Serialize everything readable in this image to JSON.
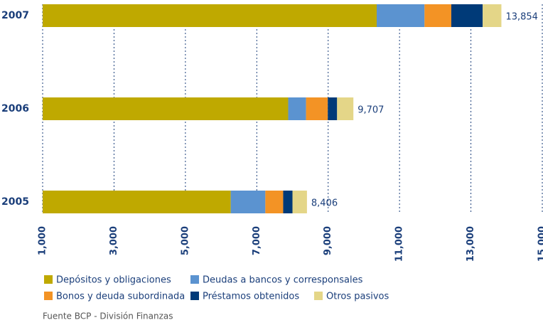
{
  "chart_data": {
    "type": "stacked-barh",
    "categories": [
      "2007",
      "2006",
      "2005"
    ],
    "series": [
      {
        "name": "Depósitos y obligaciones",
        "color": "#bfa900",
        "values": [
          10360,
          7880,
          6270
        ]
      },
      {
        "name": "Deudas a bancos y corresponsales",
        "color": "#5b93d0",
        "values": [
          1340,
          500,
          970
        ]
      },
      {
        "name": "Bonos y deuda subordinada",
        "color": "#f39325",
        "values": [
          750,
          610,
          500
        ]
      },
      {
        "name": "Préstamos obtenidos",
        "color": "#003a78",
        "values": [
          880,
          260,
          260
        ]
      },
      {
        "name": "Otros pasivos",
        "color": "#e4d688",
        "values": [
          524,
          457,
          406
        ]
      }
    ],
    "totals": [
      {
        "value": 13854,
        "label": "13,854"
      },
      {
        "value": 9707,
        "label": "9,707"
      },
      {
        "value": 8406,
        "label": "8,406"
      }
    ],
    "xlim": [
      1000,
      15000
    ],
    "xticks": [
      {
        "value": 1000,
        "label": "1,000"
      },
      {
        "value": 3000,
        "label": "3,000"
      },
      {
        "value": 5000,
        "label": "5,000"
      },
      {
        "value": 7000,
        "label": "7,000"
      },
      {
        "value": 9000,
        "label": "9,000"
      },
      {
        "value": 11000,
        "label": "11,000"
      },
      {
        "value": 13000,
        "label": "13,000"
      },
      {
        "value": 15000,
        "label": "15,000"
      }
    ],
    "grid": true,
    "source": "Fuente BCP - División Finanzas"
  }
}
